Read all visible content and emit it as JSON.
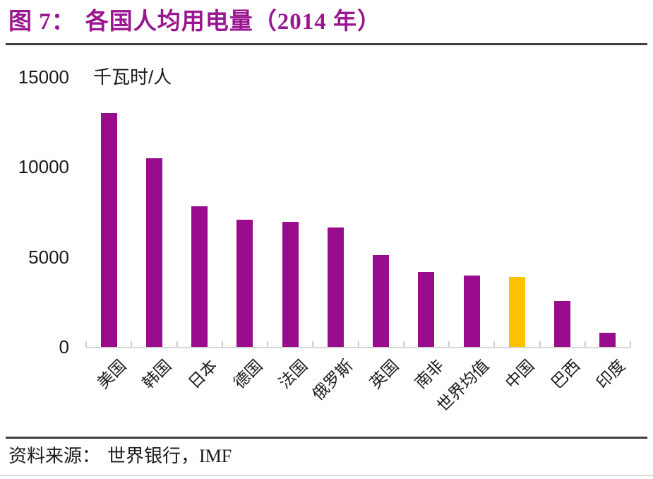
{
  "header": {
    "figure_label": "图 7：",
    "title": "各国人均用电量（2014 年）"
  },
  "source": {
    "label": "资料来源：",
    "text": "世界银行，IMF"
  },
  "chart_data": {
    "type": "bar",
    "title": "各国人均用电量（2014 年）",
    "ylabel": "千瓦时/人",
    "categories": [
      "美国",
      "韩国",
      "日本",
      "德国",
      "法国",
      "俄罗斯",
      "英国",
      "南非",
      "世界均值",
      "中国",
      "巴西",
      "印度"
    ],
    "values": [
      13000,
      10500,
      7800,
      7050,
      6950,
      6650,
      5100,
      4150,
      3950,
      3900,
      2550,
      800
    ],
    "ylim": [
      0,
      15000
    ],
    "yticks": [
      0,
      5000,
      10000,
      15000
    ],
    "grid": false,
    "legend": false,
    "bar_color": "#990d8c",
    "highlight_color": "#ffc000",
    "highlight_category": "中国",
    "title_color": "#9a1690",
    "axis_line_color": "#d6d6d6"
  }
}
